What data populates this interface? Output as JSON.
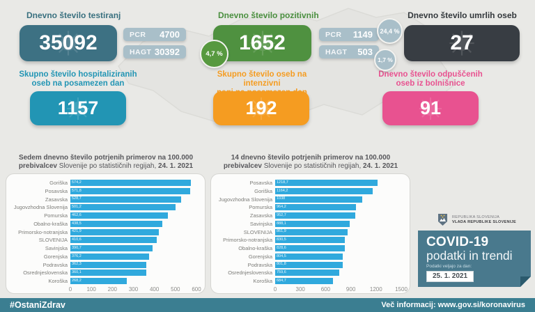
{
  "top_cards": {
    "tested": {
      "label": "Dnevno število testiranj",
      "value": "35092",
      "pcr_label": "PCR",
      "pcr_value": "4700",
      "hagt_label": "HAGT",
      "hagt_value": "30392",
      "color": "#3d7183"
    },
    "positive": {
      "label": "Dnevno število pozitivnih",
      "value": "1652",
      "total_pct": "4,7 %",
      "pcr_label": "PCR",
      "pcr_value": "1149",
      "pcr_pct": "24,4 %",
      "hagt_label": "HAGT",
      "hagt_value": "503",
      "hagt_pct": "1,7 %",
      "color": "#4f9140"
    },
    "deaths": {
      "label": "Dnevno število umrlih oseb",
      "value": "27",
      "color": "#383d43"
    }
  },
  "mid_cards": {
    "hospitalized": {
      "label_line1": "Skupno število hospitaliziranih",
      "label_line2": "oseb na posamezen dan",
      "value": "1157",
      "color": "#2295b4"
    },
    "icu": {
      "label_line1": "Skupno število oseb na intenzivni",
      "label_line2": "negi na posamezen dan",
      "value": "192",
      "color": "#f59c21"
    },
    "discharged": {
      "label_line1": "Dnevno število odpuščenih",
      "label_line2": "oseb iz bolnišnice",
      "value": "91",
      "color": "#e85290"
    }
  },
  "chart_data": [
    {
      "type": "bar",
      "orientation": "horizontal",
      "title_bold": "Sedem dnevno število potrjenih primerov na 100.000 prebivalcev",
      "title_regular": "Slovenije po statističnih regijah,",
      "title_date": "24. 1. 2021",
      "categories": [
        "Goriška",
        "Posavska",
        "Zasavska",
        "Jugovzhodna Slovenija",
        "Pomurska",
        "Obalno-kraška",
        "Primorsko-notranjska",
        "SLOVENIJA",
        "Savinjska",
        "Gorenjska",
        "Podravska",
        "Osrednjeslovenska",
        "Koroška"
      ],
      "values": [
        574.2,
        571.8,
        528.7,
        501.2,
        462.6,
        438.5,
        421.9,
        410.6,
        390.7,
        376.2,
        362.3,
        360.1,
        268.2
      ],
      "xlim": [
        0,
        600
      ],
      "x_ticks": [
        0,
        100,
        200,
        300,
        400,
        500,
        600
      ],
      "bar_color": "#30a9dd",
      "grid": false,
      "legend": false
    },
    {
      "type": "bar",
      "orientation": "horizontal",
      "title_bold": "14 dnevno število potrjenih primerov na 100.000 prebivalcev",
      "title_regular": "Slovenije po statističnih regijah,",
      "title_date": "24. 1. 2021",
      "categories": [
        "Posavska",
        "Goriška",
        "Jugovzhodna Slovenija",
        "Pomurska",
        "Zasavska",
        "Savinjska",
        "SLOVENIJA",
        "Primorsko-notranjska",
        "Obalno-kraška",
        "Gorenjska",
        "Podravska",
        "Osrednjeslovenska",
        "Koroška"
      ],
      "values": [
        1218.7,
        1164.2,
        1038,
        964.2,
        952.7,
        888.1,
        861.9,
        830.5,
        828.6,
        804.5,
        801.8,
        759.6,
        684.7
      ],
      "xlim": [
        0,
        1500
      ],
      "x_ticks": [
        0,
        300,
        600,
        900,
        1200,
        1500
      ],
      "bar_color": "#30a9dd",
      "grid": false,
      "legend": false
    }
  ],
  "branding": {
    "gov_line1": "REPUBLIKA SLOVENIJA",
    "gov_line2": "VLADA REPUBLIKE SLOVENIJE",
    "covid_title": "COVID-19",
    "covid_subtitle": "podatki in trendi",
    "covid_date_label": "Podatki veljajo za dan:",
    "covid_date": "25. 1. 2021",
    "card_color": "#49798d"
  },
  "footer": {
    "hashtag": "#OstaniZdrav",
    "info": "Več informacij: www.gov.si/koronavirus",
    "color": "#3b7e91"
  }
}
